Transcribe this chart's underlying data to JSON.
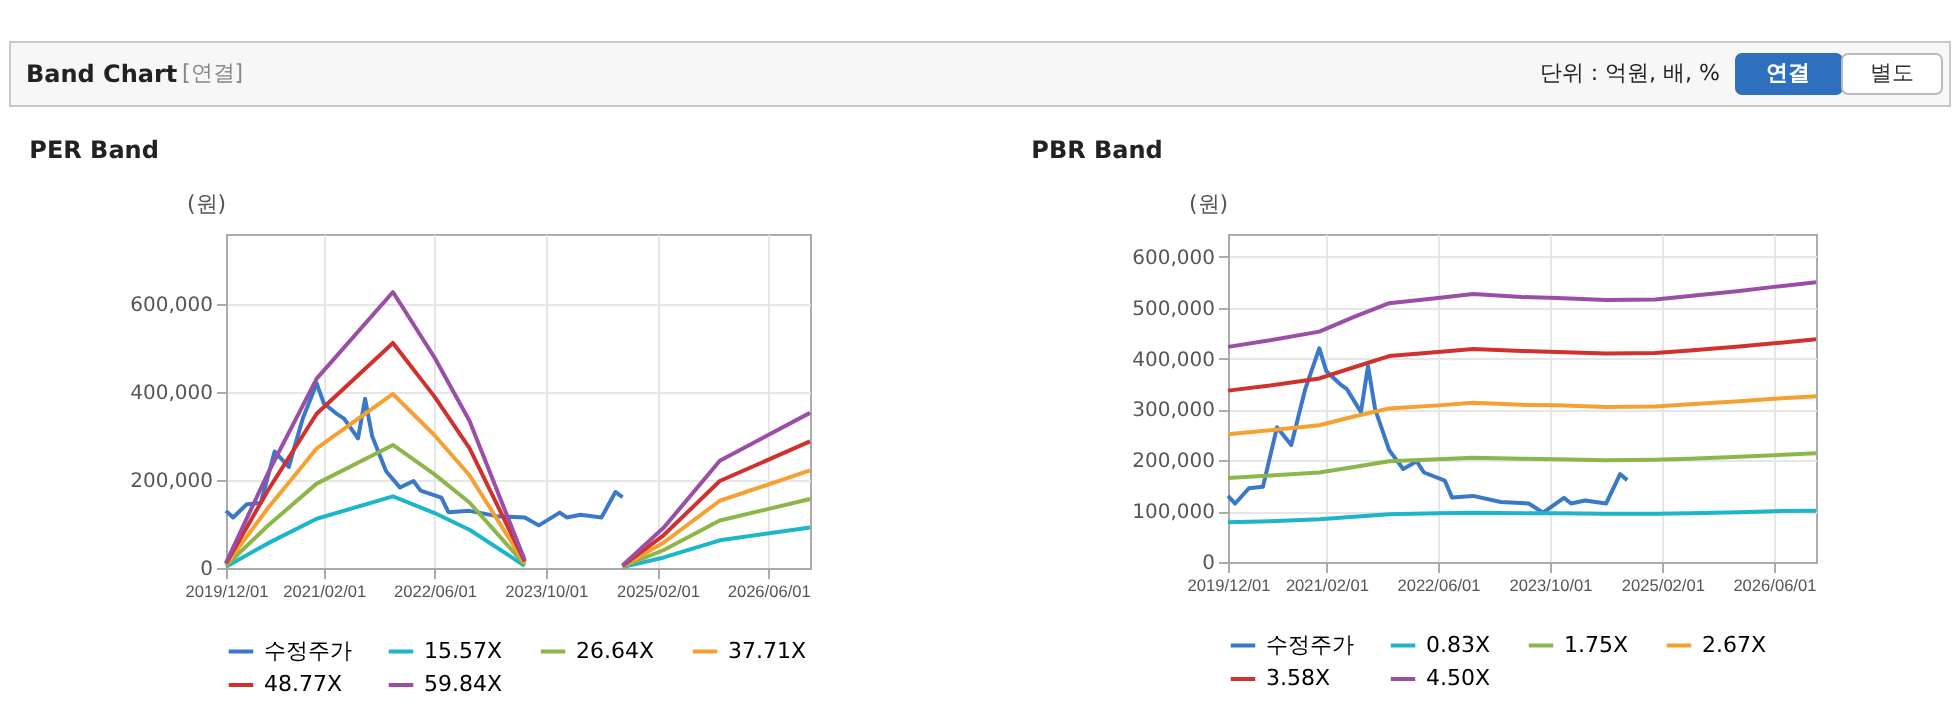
{
  "chart_data": [
    {
      "type": "line",
      "title": "PER Band",
      "ylabel": "(원)",
      "annotations": [
        "Band Chart",
        "[연결]",
        "단위 : 억원, 배, %",
        "연결",
        "별도"
      ],
      "x": [
        "2019-12",
        "2020-06",
        "2021-01",
        "2021-12",
        "2022-06",
        "2022-11",
        "2023-07",
        "2024-01",
        "2024-09",
        "2025-03",
        "2025-11",
        "2026-12"
      ],
      "series": [
        {
          "name": "수정주가",
          "color": "#3a78c9",
          "x": [
            "2019-12",
            "2020-01",
            "2020-03",
            "2020-05",
            "2020-07",
            "2020-09",
            "2020-11",
            "2021-01",
            "2021-02",
            "2021-04",
            "2021-05",
            "2021-07",
            "2021-08",
            "2021-09",
            "2021-11",
            "2022-01",
            "2022-03",
            "2022-04",
            "2022-07",
            "2022-08",
            "2022-11",
            "2023-03",
            "2023-07",
            "2023-09",
            "2023-12",
            "2024-01",
            "2024-03",
            "2024-06",
            "2024-08",
            "2024-09"
          ],
          "values": [
            130000,
            115000,
            145000,
            148000,
            265000,
            230000,
            340000,
            420000,
            375000,
            350000,
            340000,
            295000,
            385000,
            300000,
            220000,
            183000,
            198000,
            176000,
            160000,
            127000,
            130000,
            118000,
            115000,
            97000,
            126000,
            115000,
            121000,
            115000,
            173000,
            161000
          ]
        },
        {
          "name": "15.57X",
          "color": "#1cb5c9",
          "values": [
            3000,
            56000,
            112000,
            163000,
            125000,
            87000,
            5000,
            null,
            2000,
            24000,
            63000,
            92000
          ]
        },
        {
          "name": "26.64X",
          "color": "#8db64a",
          "values": [
            5000,
            96000,
            192000,
            280000,
            213000,
            149000,
            8000,
            null,
            3000,
            41000,
            108000,
            157000
          ]
        },
        {
          "name": "37.71X",
          "color": "#f5a030",
          "values": [
            8000,
            136000,
            272000,
            396000,
            302000,
            211000,
            11000,
            null,
            4000,
            58000,
            153000,
            222000
          ]
        },
        {
          "name": "48.77X",
          "color": "#d0312d",
          "values": [
            10000,
            176000,
            351000,
            512000,
            390000,
            273000,
            15000,
            null,
            5000,
            75000,
            198000,
            288000
          ]
        },
        {
          "name": "59.84X",
          "color": "#9b4ea6",
          "values": [
            12000,
            215000,
            431000,
            628000,
            479000,
            335000,
            18000,
            null,
            6000,
            92000,
            244000,
            353000
          ]
        }
      ],
      "xlim": [
        "2019-12-01",
        "2026-12-01"
      ],
      "xticks": [
        {
          "value": "2019-12-01",
          "label": "2019/12/01"
        },
        {
          "value": "2021-02-01",
          "label": "2021/02/01"
        },
        {
          "value": "2022-06-01",
          "label": "2022/06/01"
        },
        {
          "value": "2023-10-01",
          "label": "2023/10/01"
        },
        {
          "value": "2025-02-01",
          "label": "2025/02/01"
        },
        {
          "value": "2026-06-01",
          "label": "2026/06/01"
        }
      ],
      "ylim": [
        0,
        760000
      ],
      "yticks": [
        {
          "value": 0,
          "label": "0"
        },
        {
          "value": 200000,
          "label": "200,000"
        },
        {
          "value": 400000,
          "label": "400,000"
        },
        {
          "value": 600000,
          "label": "600,000"
        }
      ],
      "grid": true,
      "legend": "bottom",
      "marker": "none",
      "line_style": "solid"
    },
    {
      "type": "line",
      "title": "PBR Band",
      "ylabel": "(원)",
      "x": [
        "2019-12",
        "2020-06",
        "2021-01",
        "2021-06",
        "2021-11",
        "2022-06",
        "2022-11",
        "2023-06",
        "2023-11",
        "2024-06",
        "2025-01",
        "2025-06",
        "2026-01",
        "2026-06",
        "2026-12"
      ],
      "series": [
        {
          "name": "수정주가",
          "color": "#3a78c9",
          "x": [
            "2019-12",
            "2020-01",
            "2020-03",
            "2020-05",
            "2020-07",
            "2020-09",
            "2020-11",
            "2021-01",
            "2021-02",
            "2021-04",
            "2021-05",
            "2021-07",
            "2021-08",
            "2021-09",
            "2021-11",
            "2022-01",
            "2022-03",
            "2022-04",
            "2022-07",
            "2022-08",
            "2022-11",
            "2023-03",
            "2023-07",
            "2023-09",
            "2023-12",
            "2024-01",
            "2024-03",
            "2024-06",
            "2024-08",
            "2024-09"
          ],
          "values": [
            130000,
            115000,
            145000,
            148000,
            265000,
            230000,
            340000,
            420000,
            375000,
            350000,
            340000,
            295000,
            385000,
            300000,
            220000,
            183000,
            198000,
            176000,
            160000,
            127000,
            130000,
            118000,
            115000,
            97000,
            126000,
            115000,
            121000,
            115000,
            173000,
            161000
          ]
        },
        {
          "name": "0.83X",
          "color": "#1cb5c9",
          "values": [
            78000,
            80000,
            84000,
            89000,
            94000,
            96000,
            97000,
            96000,
            96000,
            95000,
            95000,
            96000,
            98000,
            100000,
            101000
          ]
        },
        {
          "name": "1.75X",
          "color": "#8db64a",
          "values": [
            165000,
            170000,
            176000,
            187000,
            198000,
            202000,
            205000,
            203000,
            202000,
            200000,
            201000,
            203000,
            207000,
            210000,
            214000
          ]
        },
        {
          "name": "2.67X",
          "color": "#f5a030",
          "values": [
            251000,
            259000,
            269000,
            286000,
            302000,
            308000,
            313000,
            309000,
            308000,
            305000,
            306000,
            310000,
            316000,
            321000,
            326000
          ]
        },
        {
          "name": "3.58X",
          "color": "#d0312d",
          "values": [
            337000,
            347000,
            361000,
            383000,
            405000,
            413000,
            419000,
            415000,
            413000,
            410000,
            411000,
            416000,
            424000,
            430000,
            438000
          ]
        },
        {
          "name": "4.50X",
          "color": "#9b4ea6",
          "values": [
            423000,
            436000,
            453000,
            482000,
            509000,
            519000,
            527000,
            521000,
            519000,
            515000,
            516000,
            523000,
            533000,
            541000,
            550000
          ]
        }
      ],
      "xlim": [
        "2019-12-01",
        "2026-12-01"
      ],
      "xticks": [
        {
          "value": "2019-12-01",
          "label": "2019/12/01"
        },
        {
          "value": "2021-02-01",
          "label": "2021/02/01"
        },
        {
          "value": "2022-06-01",
          "label": "2022/06/01"
        },
        {
          "value": "2023-10-01",
          "label": "2023/10/01"
        },
        {
          "value": "2025-02-01",
          "label": "2025/02/01"
        },
        {
          "value": "2026-06-01",
          "label": "2026/06/01"
        }
      ],
      "ylim": [
        0,
        645000
      ],
      "yticks": [
        {
          "value": 0,
          "label": "0"
        },
        {
          "value": 100000,
          "label": "100,000"
        },
        {
          "value": 200000,
          "label": "200,000"
        },
        {
          "value": 300000,
          "label": "300,000"
        },
        {
          "value": 400000,
          "label": "400,000"
        },
        {
          "value": 500000,
          "label": "500,000"
        },
        {
          "value": 600000,
          "label": "600,000"
        }
      ],
      "grid": true,
      "legend": "bottom",
      "marker": "none",
      "line_style": "solid"
    }
  ]
}
